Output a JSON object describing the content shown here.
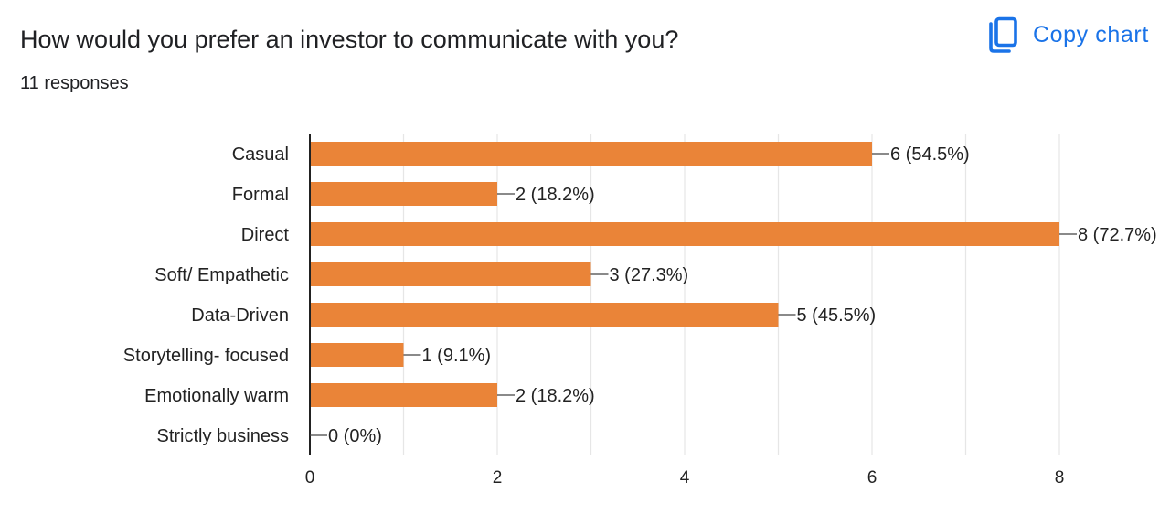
{
  "header": {
    "question": "How would you prefer an investor to communicate with you?",
    "responses": "11 responses",
    "copy_label": "Copy chart",
    "copy_icon": "copy-icon"
  },
  "colors": {
    "bar": "#ea8438",
    "accent": "#1a73e8",
    "grid": "#e6e6e6",
    "axis": "#222222"
  },
  "chart_data": {
    "type": "bar",
    "orientation": "horizontal",
    "categories": [
      "Casual",
      "Formal",
      "Direct",
      "Soft/ Empathetic",
      "Data-Driven",
      "Storytelling- focused",
      "Emotionally warm",
      "Strictly business"
    ],
    "values": [
      6,
      2,
      8,
      3,
      5,
      1,
      2,
      0
    ],
    "percents": [
      "54.5%",
      "18.2%",
      "72.7%",
      "27.3%",
      "45.5%",
      "9.1%",
      "18.2%",
      "0%"
    ],
    "data_labels": [
      "6 (54.5%)",
      "2 (18.2%)",
      "8 (72.7%)",
      "3 (27.3%)",
      "5 (45.5%)",
      "1 (9.1%)",
      "2 (18.2%)",
      "0 (0%)"
    ],
    "xlim": [
      0,
      8
    ],
    "xticks": [
      0,
      2,
      4,
      6,
      8
    ],
    "grid": true,
    "legend": "none"
  }
}
